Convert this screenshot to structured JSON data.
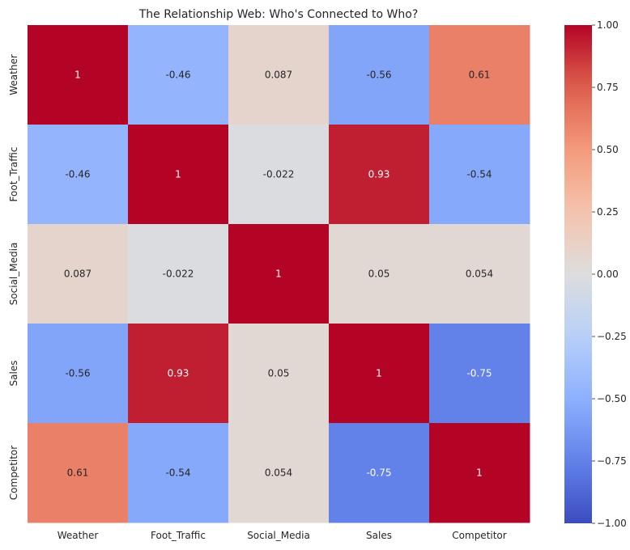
{
  "chart_data": {
    "type": "heatmap",
    "title": "The Relationship Web: Who's Connected to Who?",
    "xlabel": "",
    "ylabel": "",
    "x_categories": [
      "Weather",
      "Foot_Traffic",
      "Social_Media",
      "Sales",
      "Competitor"
    ],
    "y_categories": [
      "Weather",
      "Foot_Traffic",
      "Social_Media",
      "Sales",
      "Competitor"
    ],
    "values": [
      [
        1,
        -0.46,
        0.087,
        -0.56,
        0.61
      ],
      [
        -0.46,
        1,
        -0.022,
        0.93,
        -0.54
      ],
      [
        0.087,
        -0.022,
        1,
        0.05,
        0.054
      ],
      [
        -0.56,
        0.93,
        0.05,
        1,
        -0.75
      ],
      [
        0.61,
        -0.54,
        0.054,
        -0.75,
        1
      ]
    ],
    "value_labels": [
      [
        "1",
        "-0.46",
        "0.087",
        "-0.56",
        "0.61"
      ],
      [
        "-0.46",
        "1",
        "-0.022",
        "0.93",
        "-0.54"
      ],
      [
        "0.087",
        "-0.022",
        "1",
        "0.05",
        "0.054"
      ],
      [
        "-0.56",
        "0.93",
        "0.05",
        "1",
        "-0.75"
      ],
      [
        "0.61",
        "-0.54",
        "0.054",
        "-0.75",
        "1"
      ]
    ],
    "colormap": "coolwarm",
    "vmin": -1,
    "vmax": 1,
    "colorbar_ticks": [
      1.0,
      0.75,
      0.5,
      0.25,
      0.0,
      -0.25,
      -0.5,
      -0.75,
      -1.0
    ],
    "colorbar_tick_labels": [
      "1.00",
      "0.75",
      "0.50",
      "0.25",
      "0.00",
      "−0.25",
      "−0.50",
      "−0.75",
      "−1.00"
    ]
  }
}
